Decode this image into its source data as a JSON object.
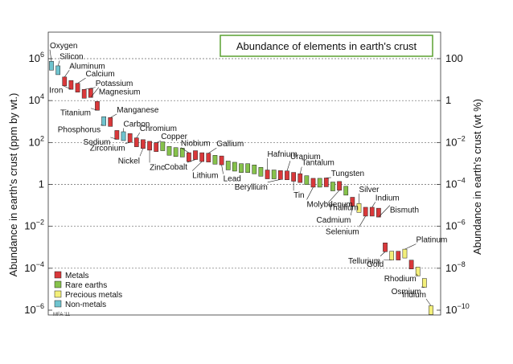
{
  "chart_data": {
    "type": "bar",
    "title": "Abundance of elements in earth's crust",
    "ylabel_left": "Abundance in earth's crust (ppm by wt.)",
    "ylabel_right": "Abundance in earth's crust (wt %)",
    "y_scale": "log",
    "ylim": [
      1e-06,
      1000000.0
    ],
    "grid": true,
    "left_ticks": [
      {
        "value": 1000000,
        "label": "10",
        "exp": "6"
      },
      {
        "value": 10000,
        "label": "10",
        "exp": "4"
      },
      {
        "value": 100,
        "label": "10",
        "exp": "2"
      },
      {
        "value": 1,
        "label": "1",
        "exp": ""
      },
      {
        "value": 0.01,
        "label": "10",
        "exp": "−2"
      },
      {
        "value": 0.0001,
        "label": "10",
        "exp": "−4"
      },
      {
        "value": 1e-06,
        "label": "10",
        "exp": "−6"
      }
    ],
    "right_ticks": [
      {
        "value": 1000000,
        "label": "100",
        "exp": ""
      },
      {
        "value": 10000,
        "label": "1",
        "exp": ""
      },
      {
        "value": 100,
        "label": "10",
        "exp": "−2"
      },
      {
        "value": 1,
        "label": "10",
        "exp": "−4"
      },
      {
        "value": 0.01,
        "label": "10",
        "exp": "−6"
      },
      {
        "value": 0.0001,
        "label": "10",
        "exp": "−8"
      },
      {
        "value": 1e-06,
        "label": "10",
        "exp": "−10"
      }
    ],
    "legend": [
      {
        "name": "Metals",
        "category": "metal",
        "color": "#d9383a"
      },
      {
        "name": "Rare earths",
        "category": "rare",
        "color": "#86c24b"
      },
      {
        "name": "Precious metals",
        "category": "precious",
        "color": "#f3ef7a"
      },
      {
        "name": "Non-metals",
        "category": "nonmetal",
        "color": "#6fc4cf"
      }
    ],
    "legend_placement": "bottom-left",
    "colors": {
      "metal": "#d9383a",
      "rare": "#86c24b",
      "precious": "#f3ef7a",
      "nonmetal": "#6fc4cf"
    },
    "note": "MFA '11",
    "elements": [
      {
        "name": "Oxygen",
        "value": 460000,
        "category": "nonmetal",
        "labeled": true
      },
      {
        "name": "Silicon",
        "value": 280000,
        "category": "nonmetal",
        "labeled": true
      },
      {
        "name": "Aluminum",
        "value": 82000,
        "category": "metal",
        "labeled": true
      },
      {
        "name": "Iron",
        "value": 56000,
        "category": "metal",
        "labeled": true
      },
      {
        "name": "Calcium",
        "value": 41000,
        "category": "metal",
        "labeled": true
      },
      {
        "name": "Potassium",
        "value": 21000,
        "category": "metal",
        "labeled": true
      },
      {
        "name": "Magnesium",
        "value": 23000,
        "category": "metal",
        "labeled": true
      },
      {
        "name": "Titanium",
        "value": 5600,
        "category": "metal",
        "labeled": true
      },
      {
        "name": "Phosphorus",
        "value": 1050,
        "category": "nonmetal",
        "labeled": true
      },
      {
        "name": "Manganese",
        "value": 950,
        "category": "metal",
        "labeled": true
      },
      {
        "name": "Sodium",
        "value": 230,
        "category": "metal",
        "labeled": true
      },
      {
        "name": "Carbon",
        "value": 200,
        "category": "nonmetal",
        "labeled": true
      },
      {
        "name": "Zirconium",
        "value": 165,
        "category": "metal",
        "labeled": true
      },
      {
        "name": "Chromium",
        "value": 102,
        "category": "metal",
        "labeled": true
      },
      {
        "name": "Nickel",
        "value": 84,
        "category": "metal",
        "labeled": true
      },
      {
        "name": "Zinc",
        "value": 70,
        "category": "metal",
        "labeled": true
      },
      {
        "name": "Copper",
        "value": 60,
        "category": "metal",
        "labeled": true
      },
      {
        "name": "",
        "value": 66,
        "category": "rare",
        "labeled": false
      },
      {
        "name": "",
        "value": 40,
        "category": "rare",
        "labeled": false
      },
      {
        "name": "",
        "value": 35,
        "category": "rare",
        "labeled": false
      },
      {
        "name": "",
        "value": 33,
        "category": "rare",
        "labeled": false
      },
      {
        "name": "Niobium",
        "value": 20,
        "category": "metal",
        "labeled": true
      },
      {
        "name": "Cobalt",
        "value": 25,
        "category": "metal",
        "labeled": true
      },
      {
        "name": "Lithium",
        "value": 20,
        "category": "metal",
        "labeled": true
      },
      {
        "name": "Gallium",
        "value": 19,
        "category": "metal",
        "labeled": true
      },
      {
        "name": "",
        "value": 15,
        "category": "rare",
        "labeled": false
      },
      {
        "name": "Lead",
        "value": 14,
        "category": "metal",
        "labeled": true
      },
      {
        "name": "",
        "value": 8,
        "category": "rare",
        "labeled": false
      },
      {
        "name": "",
        "value": 7,
        "category": "rare",
        "labeled": false
      },
      {
        "name": "",
        "value": 6,
        "category": "rare",
        "labeled": false
      },
      {
        "name": "",
        "value": 6,
        "category": "rare",
        "labeled": false
      },
      {
        "name": "",
        "value": 5.2,
        "category": "rare",
        "labeled": false
      },
      {
        "name": "",
        "value": 4,
        "category": "rare",
        "labeled": false
      },
      {
        "name": "Hafnium",
        "value": 3,
        "category": "metal",
        "labeled": true
      },
      {
        "name": "",
        "value": 3,
        "category": "rare",
        "labeled": false
      },
      {
        "name": "Beryllium",
        "value": 2.8,
        "category": "metal",
        "labeled": true
      },
      {
        "name": "Uranium",
        "value": 2.7,
        "category": "metal",
        "labeled": true
      },
      {
        "name": "Tin",
        "value": 2.3,
        "category": "metal",
        "labeled": true
      },
      {
        "name": "Tantalum",
        "value": 2,
        "category": "metal",
        "labeled": true
      },
      {
        "name": "",
        "value": 1.6,
        "category": "rare",
        "labeled": false
      },
      {
        "name": "Molybdenum",
        "value": 1.2,
        "category": "metal",
        "labeled": true
      },
      {
        "name": "",
        "value": 1.2,
        "category": "rare",
        "labeled": false
      },
      {
        "name": "Tungsten",
        "value": 1.25,
        "category": "metal",
        "labeled": true
      },
      {
        "name": "",
        "value": 0.8,
        "category": "rare",
        "labeled": false
      },
      {
        "name": "Thallium",
        "value": 0.85,
        "category": "metal",
        "labeled": true
      },
      {
        "name": "",
        "value": 0.5,
        "category": "rare",
        "labeled": false
      },
      {
        "name": "Cadmium",
        "value": 0.15,
        "category": "metal",
        "labeled": true
      },
      {
        "name": "Silver",
        "value": 0.075,
        "category": "precious",
        "labeled": true
      },
      {
        "name": "Selenium",
        "value": 0.05,
        "category": "metal",
        "labeled": true
      },
      {
        "name": "Indium",
        "value": 0.05,
        "category": "metal",
        "labeled": true
      },
      {
        "name": "Bismuth",
        "value": 0.045,
        "category": "metal",
        "labeled": true
      },
      {
        "name": "Tellurium",
        "value": 0.001,
        "category": "metal",
        "labeled": true
      },
      {
        "name": "Gold",
        "value": 0.0004,
        "category": "precious",
        "labeled": true
      },
      {
        "name": "",
        "value": 0.0004,
        "category": "metal",
        "labeled": false
      },
      {
        "name": "Platinum",
        "value": 0.0005,
        "category": "precious",
        "labeled": true
      },
      {
        "name": "",
        "value": 0.00015,
        "category": "metal",
        "labeled": false
      },
      {
        "name": "Rhodium",
        "value": 7e-05,
        "category": "precious",
        "labeled": true
      },
      {
        "name": "Osmium",
        "value": 2e-05,
        "category": "precious",
        "labeled": true
      },
      {
        "name": "Iridium",
        "value": 1e-06,
        "category": "precious",
        "labeled": true
      }
    ]
  }
}
